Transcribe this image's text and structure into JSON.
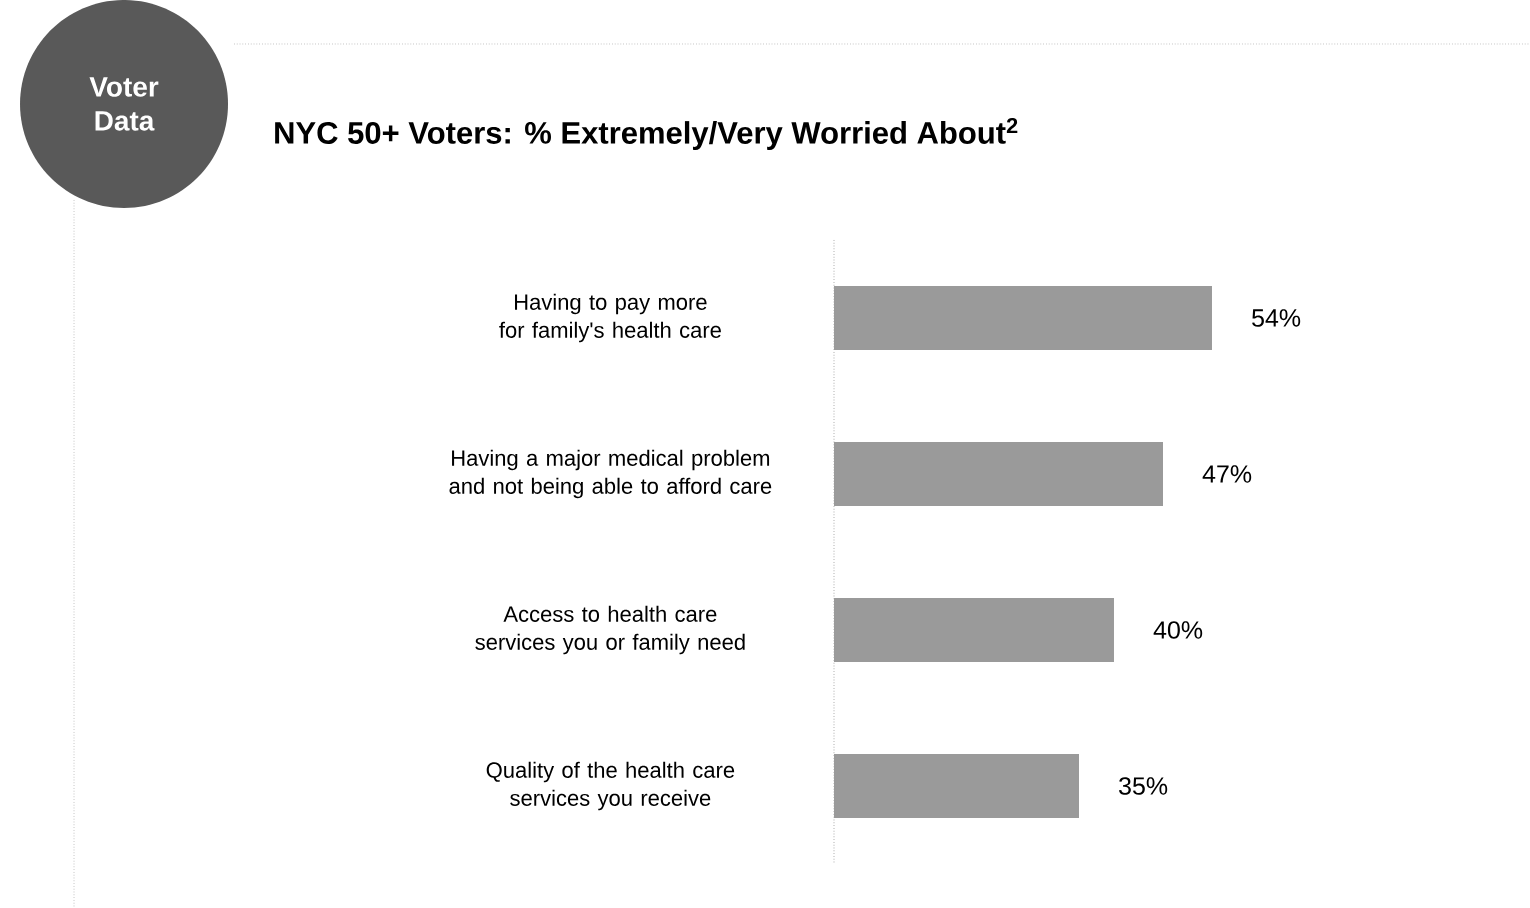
{
  "chart_data": {
    "type": "bar",
    "orientation": "horizontal",
    "title": "NYC 50+ Voters: % Extremely/Very Worried About$^{2}$",
    "annotations": [
      "Voter Data"
    ],
    "categories": [
      "Having to pay more for family's health care",
      "Having a major medical problem and not being able to afford care",
      "Access to health care services you or family need",
      "Quality of the health care services you receive"
    ],
    "values": [
      54,
      47,
      40,
      35
    ],
    "value_labels": [
      "54%",
      "47%",
      "40%",
      "35%"
    ],
    "color": "#9a9a9a"
  }
}
